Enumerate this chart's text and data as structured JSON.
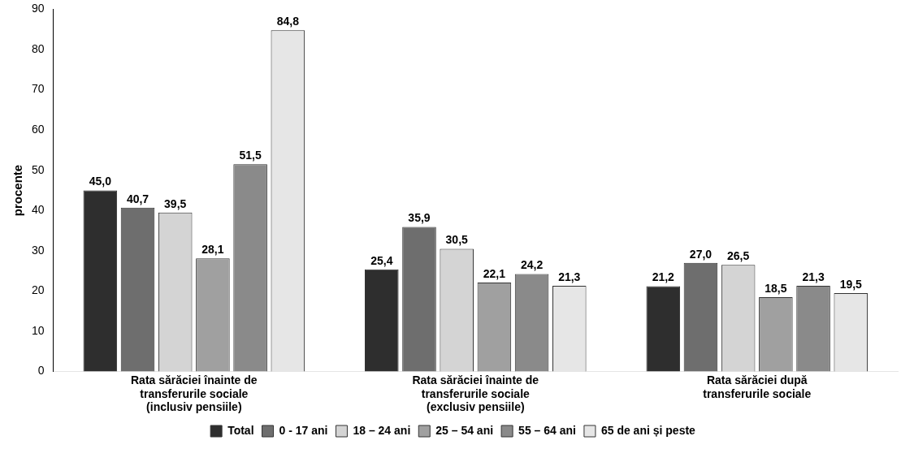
{
  "chart_data": {
    "type": "bar",
    "ylabel": "procente",
    "categories": [
      "Rata sărăciei înainte de transferurile sociale (inclusiv pensiile)",
      "Rata sărăciei înainte de transferurile sociale (exclusiv pensiile)",
      "Rata sărăciei după transferurile sociale"
    ],
    "series": [
      {
        "name": "Total",
        "color": "#2e2e2e",
        "values": [
          45.0,
          25.4,
          21.2
        ],
        "value_labels": [
          "45,0",
          "25,4",
          "21,2"
        ]
      },
      {
        "name": "0 - 17 ani",
        "color": "#6e6e6e",
        "values": [
          40.7,
          35.9,
          27.0
        ],
        "value_labels": [
          "40,7",
          "35,9",
          "27,0"
        ]
      },
      {
        "name": "18 – 24 ani",
        "color": "#d4d4d4",
        "values": [
          39.5,
          30.5,
          26.5
        ],
        "value_labels": [
          "39,5",
          "30,5",
          "26,5"
        ]
      },
      {
        "name": "25 – 54 ani",
        "color": "#a0a0a0",
        "values": [
          28.1,
          22.1,
          18.5
        ],
        "value_labels": [
          "28,1",
          "22,1",
          "18,5"
        ]
      },
      {
        "name": "55 – 64 ani",
        "color": "#8a8a8a",
        "values": [
          51.5,
          24.2,
          21.3
        ],
        "value_labels": [
          "51,5",
          "24,2",
          "21,3"
        ]
      },
      {
        "name": "65 de ani și peste",
        "color": "#e6e6e6",
        "values": [
          84.8,
          21.3,
          19.5
        ],
        "value_labels": [
          "84,8",
          "21,3",
          "19,5"
        ]
      }
    ],
    "ylim": [
      0,
      90
    ],
    "yticks": [
      0,
      10,
      20,
      30,
      40,
      50,
      60,
      70,
      80,
      90
    ],
    "grid": false,
    "legend": "bottom"
  }
}
